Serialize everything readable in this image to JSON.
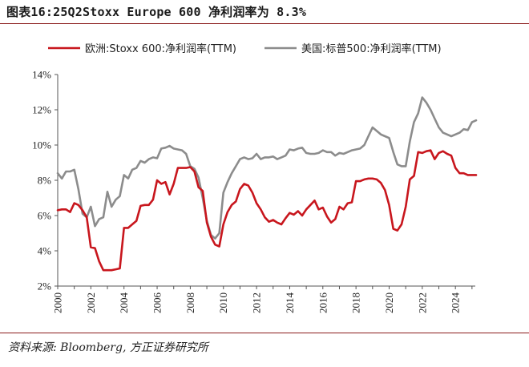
{
  "figure": {
    "title": "图表16:25Q2Stoxx Europe 600 净利润率为 8.3%",
    "source": "资料来源: Bloomberg, 方正证券研究所"
  },
  "chart_data": {
    "type": "line",
    "title": "",
    "xlabel": "",
    "ylabel": "",
    "xlim": [
      2000,
      2025.2
    ],
    "ylim": [
      2,
      14
    ],
    "xticks": [
      "2000",
      "2002",
      "2004",
      "2006",
      "2008",
      "2010",
      "2012",
      "2014",
      "2016",
      "2018",
      "2020",
      "2022",
      "2024"
    ],
    "yticks": [
      "2%",
      "4%",
      "6%",
      "8%",
      "10%",
      "12%",
      "14%"
    ],
    "grid": false,
    "legend": "top",
    "series": [
      {
        "name": "欧洲:Stoxx 600:净利润率(TTM)",
        "color": "#c8161d",
        "x": [
          2000.0,
          2000.25,
          2000.5,
          2000.75,
          2001.0,
          2001.25,
          2001.5,
          2001.75,
          2002.0,
          2002.25,
          2002.5,
          2002.75,
          2003.0,
          2003.25,
          2003.5,
          2003.75,
          2004.0,
          2004.25,
          2004.5,
          2004.75,
          2005.0,
          2005.25,
          2005.5,
          2005.75,
          2006.0,
          2006.25,
          2006.5,
          2006.75,
          2007.0,
          2007.25,
          2007.5,
          2007.75,
          2008.0,
          2008.25,
          2008.5,
          2008.75,
          2009.0,
          2009.25,
          2009.5,
          2009.75,
          2010.0,
          2010.25,
          2010.5,
          2010.75,
          2011.0,
          2011.25,
          2011.5,
          2011.75,
          2012.0,
          2012.25,
          2012.5,
          2012.75,
          2013.0,
          2013.25,
          2013.5,
          2013.75,
          2014.0,
          2014.25,
          2014.5,
          2014.75,
          2015.0,
          2015.25,
          2015.5,
          2015.75,
          2016.0,
          2016.25,
          2016.5,
          2016.75,
          2017.0,
          2017.25,
          2017.5,
          2017.75,
          2018.0,
          2018.25,
          2018.5,
          2018.75,
          2019.0,
          2019.25,
          2019.5,
          2019.75,
          2020.0,
          2020.25,
          2020.5,
          2020.75,
          2021.0,
          2021.25,
          2021.5,
          2021.75,
          2022.0,
          2022.25,
          2022.5,
          2022.75,
          2023.0,
          2023.25,
          2023.5,
          2023.75,
          2024.0,
          2024.25,
          2024.5,
          2024.75,
          2025.0,
          2025.25
        ],
        "y": [
          6.3,
          6.35,
          6.35,
          6.2,
          6.7,
          6.6,
          6.3,
          5.9,
          4.2,
          4.15,
          3.4,
          2.9,
          2.9,
          2.9,
          2.95,
          3.0,
          5.3,
          5.3,
          5.5,
          5.7,
          6.55,
          6.6,
          6.6,
          6.9,
          8.0,
          7.8,
          7.9,
          7.2,
          7.8,
          8.7,
          8.7,
          8.7,
          8.75,
          8.5,
          7.6,
          7.4,
          5.6,
          4.8,
          4.35,
          4.25,
          5.5,
          6.2,
          6.6,
          6.8,
          7.5,
          7.8,
          7.7,
          7.3,
          6.7,
          6.35,
          5.9,
          5.65,
          5.75,
          5.6,
          5.5,
          5.85,
          6.15,
          6.05,
          6.25,
          6.0,
          6.35,
          6.6,
          6.85,
          6.35,
          6.45,
          5.95,
          5.6,
          5.8,
          6.5,
          6.35,
          6.7,
          6.75,
          7.95,
          7.95,
          8.05,
          8.1,
          8.1,
          8.05,
          7.85,
          7.45,
          6.6,
          5.25,
          5.15,
          5.5,
          6.5,
          8.05,
          8.25,
          9.6,
          9.55,
          9.65,
          9.7,
          9.2,
          9.55,
          9.65,
          9.5,
          9.4,
          8.7,
          8.4,
          8.4,
          8.3,
          8.3,
          8.3
        ]
      },
      {
        "name": "美国:标普500:净利润率(TTM)",
        "color": "#8c8c8c",
        "x": [
          2000.0,
          2000.25,
          2000.5,
          2000.75,
          2001.0,
          2001.25,
          2001.5,
          2001.75,
          2002.0,
          2002.25,
          2002.5,
          2002.75,
          2003.0,
          2003.25,
          2003.5,
          2003.75,
          2004.0,
          2004.25,
          2004.5,
          2004.75,
          2005.0,
          2005.25,
          2005.5,
          2005.75,
          2006.0,
          2006.25,
          2006.5,
          2006.75,
          2007.0,
          2007.25,
          2007.5,
          2007.75,
          2008.0,
          2008.25,
          2008.5,
          2008.75,
          2009.0,
          2009.25,
          2009.5,
          2009.75,
          2010.0,
          2010.25,
          2010.5,
          2010.75,
          2011.0,
          2011.25,
          2011.5,
          2011.75,
          2012.0,
          2012.25,
          2012.5,
          2012.75,
          2013.0,
          2013.25,
          2013.5,
          2013.75,
          2014.0,
          2014.25,
          2014.5,
          2014.75,
          2015.0,
          2015.25,
          2015.5,
          2015.75,
          2016.0,
          2016.25,
          2016.5,
          2016.75,
          2017.0,
          2017.25,
          2017.5,
          2017.75,
          2018.0,
          2018.25,
          2018.5,
          2018.75,
          2019.0,
          2019.25,
          2019.5,
          2019.75,
          2020.0,
          2020.25,
          2020.5,
          2020.75,
          2021.0,
          2021.25,
          2021.5,
          2021.75,
          2022.0,
          2022.25,
          2022.5,
          2022.75,
          2023.0,
          2023.25,
          2023.5,
          2023.75,
          2024.0,
          2024.25,
          2024.5,
          2024.75,
          2025.0,
          2025.25
        ],
        "y": [
          8.4,
          8.1,
          8.5,
          8.5,
          8.6,
          7.5,
          6.1,
          5.9,
          6.5,
          5.4,
          5.8,
          5.9,
          7.35,
          6.5,
          6.9,
          7.1,
          8.3,
          8.1,
          8.6,
          8.7,
          9.1,
          9.0,
          9.2,
          9.3,
          9.25,
          9.8,
          9.85,
          9.95,
          9.8,
          9.75,
          9.7,
          9.5,
          8.8,
          8.65,
          8.15,
          7.0,
          5.7,
          4.9,
          4.7,
          5.0,
          7.3,
          7.9,
          8.4,
          8.8,
          9.2,
          9.3,
          9.2,
          9.25,
          9.5,
          9.2,
          9.3,
          9.3,
          9.35,
          9.2,
          9.3,
          9.4,
          9.75,
          9.7,
          9.8,
          9.85,
          9.55,
          9.5,
          9.5,
          9.55,
          9.7,
          9.6,
          9.6,
          9.4,
          9.55,
          9.5,
          9.6,
          9.7,
          9.75,
          9.8,
          10.0,
          10.5,
          11.0,
          10.8,
          10.6,
          10.5,
          10.4,
          9.6,
          8.9,
          8.8,
          8.8,
          10.2,
          11.3,
          11.8,
          12.7,
          12.4,
          12.0,
          11.5,
          11.0,
          10.7,
          10.6,
          10.5,
          10.6,
          10.7,
          10.9,
          10.85,
          11.3,
          11.4
        ]
      }
    ]
  }
}
